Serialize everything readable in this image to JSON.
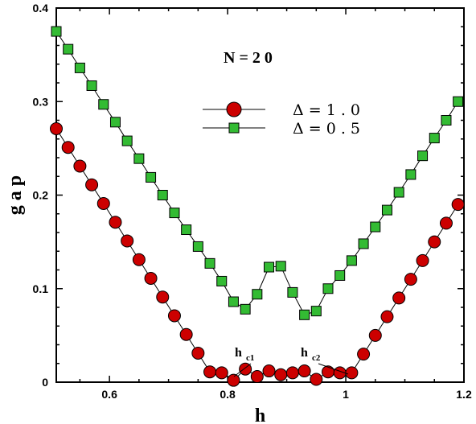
{
  "chart_data": {
    "type": "line",
    "title": "",
    "xlabel": "h",
    "ylabel": "g a p",
    "xlim": [
      0.51,
      1.2
    ],
    "ylim": [
      0,
      0.4
    ],
    "grid": false,
    "legend_position": "top-right",
    "x_ticks": [
      0.6,
      0.8,
      1.0,
      1.2
    ],
    "x_tick_labels": [
      "0.6",
      "0.8",
      "1",
      "1.2"
    ],
    "y_ticks": [
      0,
      0.1,
      0.2,
      0.3,
      0.4
    ],
    "y_tick_labels": [
      "0",
      "0.1",
      "0.2",
      "0.3",
      "0.4"
    ],
    "annotations": {
      "n_label": "N = 2 0",
      "hc1_main": "h",
      "hc1_sub": "c1",
      "hc2_main": "h",
      "hc2_sub": "c2"
    },
    "series": [
      {
        "name": "Δ = 1 . 0",
        "marker": "circle",
        "color": "#cc0000",
        "x": [
          0.51,
          0.53,
          0.55,
          0.57,
          0.59,
          0.61,
          0.63,
          0.65,
          0.67,
          0.69,
          0.71,
          0.73,
          0.75,
          0.77,
          0.79,
          0.81,
          0.83,
          0.85,
          0.87,
          0.89,
          0.91,
          0.93,
          0.95,
          0.97,
          0.99,
          1.01,
          1.03,
          1.05,
          1.07,
          1.09,
          1.11,
          1.13,
          1.15,
          1.17,
          1.19
        ],
        "y": [
          0.271,
          0.251,
          0.231,
          0.211,
          0.191,
          0.171,
          0.151,
          0.131,
          0.111,
          0.091,
          0.071,
          0.051,
          0.031,
          0.011,
          0.01,
          0.002,
          0.014,
          0.006,
          0.012,
          0.008,
          0.01,
          0.012,
          0.003,
          0.011,
          0.01,
          0.01,
          0.03,
          0.05,
          0.07,
          0.09,
          0.11,
          0.13,
          0.15,
          0.17,
          0.19
        ]
      },
      {
        "name": "Δ = 0 . 5",
        "marker": "square",
        "color": "#33bb33",
        "x": [
          0.51,
          0.53,
          0.55,
          0.57,
          0.59,
          0.61,
          0.63,
          0.65,
          0.67,
          0.69,
          0.71,
          0.73,
          0.75,
          0.77,
          0.79,
          0.81,
          0.83,
          0.85,
          0.87,
          0.89,
          0.91,
          0.93,
          0.95,
          0.97,
          0.99,
          1.01,
          1.03,
          1.05,
          1.07,
          1.09,
          1.11,
          1.13,
          1.15,
          1.17,
          1.19
        ],
        "y": [
          0.375,
          0.356,
          0.336,
          0.317,
          0.297,
          0.278,
          0.258,
          0.239,
          0.219,
          0.2,
          0.181,
          0.163,
          0.145,
          0.127,
          0.108,
          0.086,
          0.078,
          0.094,
          0.123,
          0.124,
          0.096,
          0.072,
          0.076,
          0.1,
          0.114,
          0.13,
          0.148,
          0.166,
          0.184,
          0.203,
          0.222,
          0.242,
          0.261,
          0.28,
          0.3
        ]
      }
    ]
  }
}
